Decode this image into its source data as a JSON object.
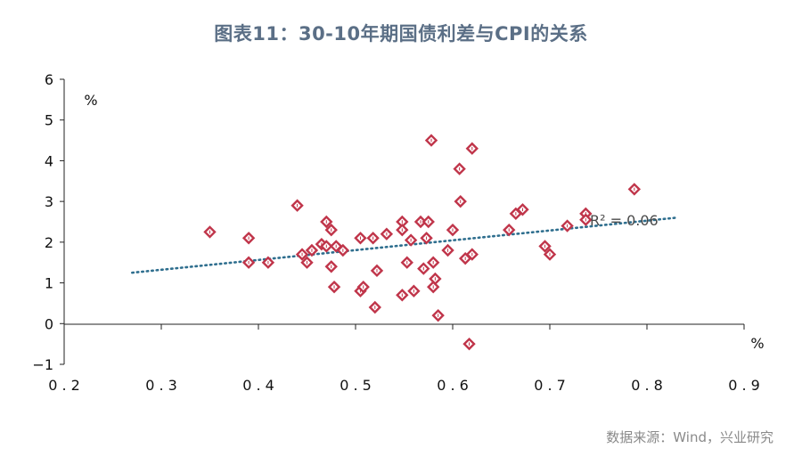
{
  "title": "图表11：30-10年期国债利差与CPI的关系",
  "source": "数据来源：Wind，兴业研究",
  "chart_data": {
    "type": "scatter",
    "title": "图表11：30-10年期国债利差与CPI的关系",
    "x_unit": "%",
    "y_unit": "%",
    "xlim": [
      0.2,
      0.9
    ],
    "ylim": [
      -1,
      6
    ],
    "x_ticks": [
      0.2,
      0.3,
      0.4,
      0.5,
      0.6,
      0.7,
      0.8,
      0.9
    ],
    "x_tick_labels": [
      "0.2",
      "0.3",
      "0.4",
      "0.5",
      "0.6",
      "0.7",
      "0.8",
      "0.9"
    ],
    "y_ticks": [
      -1,
      0,
      1,
      2,
      3,
      4,
      5,
      6
    ],
    "y_tick_labels": [
      "−1",
      "0",
      "1",
      "2",
      "3",
      "4",
      "5",
      "6"
    ],
    "grid": false,
    "marker_color": "#c0354a",
    "trendline_color": "#2e6e8e",
    "trendline": {
      "type": "linear",
      "x": [
        0.27,
        0.83
      ],
      "y": [
        1.25,
        2.6
      ],
      "r2_label": "R² = 0.06"
    },
    "points": [
      [
        0.35,
        2.25
      ],
      [
        0.39,
        2.1
      ],
      [
        0.39,
        1.5
      ],
      [
        0.41,
        1.5
      ],
      [
        0.44,
        2.9
      ],
      [
        0.445,
        1.7
      ],
      [
        0.45,
        1.5
      ],
      [
        0.455,
        1.8
      ],
      [
        0.465,
        1.95
      ],
      [
        0.47,
        2.5
      ],
      [
        0.47,
        1.9
      ],
      [
        0.475,
        2.3
      ],
      [
        0.475,
        1.4
      ],
      [
        0.478,
        0.9
      ],
      [
        0.48,
        1.9
      ],
      [
        0.487,
        1.8
      ],
      [
        0.505,
        2.1
      ],
      [
        0.505,
        0.8
      ],
      [
        0.508,
        0.9
      ],
      [
        0.518,
        2.1
      ],
      [
        0.52,
        0.4
      ],
      [
        0.522,
        1.3
      ],
      [
        0.532,
        2.2
      ],
      [
        0.548,
        2.5
      ],
      [
        0.548,
        2.3
      ],
      [
        0.548,
        0.7
      ],
      [
        0.553,
        1.5
      ],
      [
        0.557,
        2.05
      ],
      [
        0.56,
        0.8
      ],
      [
        0.567,
        2.5
      ],
      [
        0.57,
        1.35
      ],
      [
        0.573,
        2.1
      ],
      [
        0.575,
        2.5
      ],
      [
        0.578,
        4.5
      ],
      [
        0.58,
        1.5
      ],
      [
        0.58,
        0.9
      ],
      [
        0.582,
        1.1
      ],
      [
        0.585,
        0.2
      ],
      [
        0.595,
        1.8
      ],
      [
        0.6,
        2.3
      ],
      [
        0.607,
        3.8
      ],
      [
        0.608,
        3.0
      ],
      [
        0.613,
        1.6
      ],
      [
        0.617,
        -0.5
      ],
      [
        0.62,
        4.3
      ],
      [
        0.62,
        1.7
      ],
      [
        0.658,
        2.3
      ],
      [
        0.665,
        2.7
      ],
      [
        0.672,
        2.8
      ],
      [
        0.695,
        1.9
      ],
      [
        0.7,
        1.7
      ],
      [
        0.718,
        2.4
      ],
      [
        0.737,
        2.7
      ],
      [
        0.737,
        2.55
      ],
      [
        0.787,
        3.3
      ]
    ]
  }
}
